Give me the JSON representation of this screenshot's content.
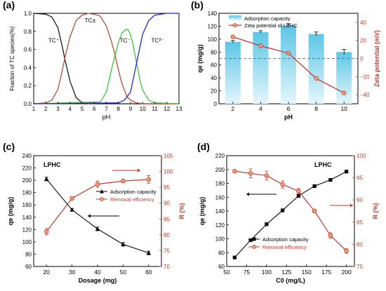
{
  "chart_data": [
    {
      "panel_label": "(a)",
      "type": "line",
      "xlabel": "pH",
      "ylabel": "Fraction of TC species(%)",
      "xlim": [
        1,
        13
      ],
      "ylim": [
        0.0,
        1.0
      ],
      "xticks": [
        1,
        2,
        3,
        4,
        5,
        6,
        7,
        8,
        9,
        10,
        11,
        12,
        13
      ],
      "yticks": [
        0.0,
        0.2,
        0.4,
        0.6,
        0.8,
        1.0
      ],
      "ytick_labels": [
        "0.0",
        "0.2",
        "0.4",
        "0.6",
        "0.8",
        "1.0"
      ],
      "grid": false,
      "series": [
        {
          "name": "TC⁺",
          "color": "#1a1a1a",
          "x": [
            1,
            2,
            2.5,
            3,
            3.3,
            3.6,
            4,
            4.5,
            5,
            6,
            7,
            13
          ],
          "values": [
            1.0,
            0.99,
            0.96,
            0.84,
            0.67,
            0.48,
            0.25,
            0.07,
            0.01,
            0.0,
            0.0,
            0.0
          ]
        },
        {
          "name": "TC±",
          "color": "#b54a3c",
          "x": [
            1,
            2,
            2.5,
            3,
            3.3,
            3.6,
            4,
            4.5,
            5,
            5.5,
            6,
            6.5,
            7,
            7.4,
            7.7,
            8,
            8.3,
            8.7,
            9,
            9.5,
            10,
            11,
            13
          ],
          "values": [
            0.0,
            0.01,
            0.04,
            0.16,
            0.33,
            0.52,
            0.74,
            0.92,
            0.98,
            1.0,
            0.99,
            0.97,
            0.86,
            0.7,
            0.55,
            0.37,
            0.22,
            0.08,
            0.04,
            0.01,
            0.0,
            0.0,
            0.0
          ]
        },
        {
          "name": "TC⁻",
          "color": "#3cc43a",
          "x": [
            1,
            6.5,
            7,
            7.5,
            8,
            8.3,
            8.6,
            8.8,
            9,
            9.2,
            9.5,
            9.8,
            10,
            10.5,
            11,
            13
          ],
          "values": [
            0.0,
            0.02,
            0.13,
            0.42,
            0.68,
            0.78,
            0.82,
            0.82,
            0.76,
            0.66,
            0.45,
            0.25,
            0.15,
            0.04,
            0.01,
            0.0
          ]
        },
        {
          "name": "TC²⁻",
          "color": "#1e2ad6",
          "x": [
            1,
            8,
            8.5,
            9,
            9.5,
            10,
            10.5,
            11,
            11.5,
            12,
            13
          ],
          "values": [
            0.0,
            0.01,
            0.04,
            0.13,
            0.45,
            0.77,
            0.92,
            0.98,
            0.99,
            1.0,
            1.0
          ]
        }
      ],
      "annotations": [
        "TC⁺",
        "TC±",
        "TC⁻",
        "TC²⁻"
      ]
    },
    {
      "panel_label": "(b)",
      "type": "bar",
      "xlabel": "pH",
      "ylabel": "qe (mg/g)",
      "y2label": "Zeta potential (mV)",
      "categories": [
        "2",
        "4",
        "6",
        "8",
        "10"
      ],
      "ylim": [
        0,
        140
      ],
      "y2lim": [
        -50,
        50
      ],
      "yticks": [
        0,
        20,
        40,
        60,
        80,
        100,
        120,
        140
      ],
      "y2ticks": [
        -40,
        -20,
        0,
        20,
        40
      ],
      "y2tick_labels": [
        "−40",
        "−20",
        "0",
        "20",
        "40"
      ],
      "legend_position": "top-right",
      "series": [
        {
          "name": "Adsorption capacity",
          "kind": "bar",
          "axis": "left",
          "color": "#7fd3ea",
          "values": [
            96,
            111,
            121,
            108,
            80
          ],
          "errors": [
            2,
            2,
            3,
            3,
            4
          ]
        },
        {
          "name": "Zeta potential of LPHC",
          "kind": "line",
          "axis": "right",
          "color": "#c0392b",
          "values": [
            24,
            14,
            6,
            -22,
            -38
          ],
          "errors": [
            2,
            3,
            1,
            1,
            1
          ]
        }
      ],
      "reference_line": {
        "axis": "right",
        "value": 0
      }
    },
    {
      "panel_label": "(c)",
      "type": "line",
      "annotation_label": "LPHC",
      "xlabel": "Dosage (mg)",
      "ylabel": "qe (mg/g)",
      "y2label": "R (%)",
      "x": [
        20,
        30,
        40,
        50,
        60
      ],
      "xlim": [
        15,
        65
      ],
      "xticks": [
        20,
        30,
        40,
        50,
        60
      ],
      "ylim": [
        60,
        240
      ],
      "yticks": [
        60,
        80,
        100,
        120,
        140,
        160,
        180,
        200,
        220,
        240
      ],
      "y2lim": [
        70,
        105
      ],
      "y2ticks": [
        70,
        75,
        80,
        85,
        90,
        95,
        100,
        105
      ],
      "legend_position": "center-right",
      "series": [
        {
          "name": "Adsorption capacity",
          "axis": "left",
          "color": "#1a1a1a",
          "marker": "triangle",
          "values": [
            202,
            152,
            121,
            96,
            82
          ],
          "errors": [
            3,
            2,
            3,
            3,
            3
          ]
        },
        {
          "name": "Removal efficiency",
          "axis": "right",
          "color": "#c0392b",
          "marker": "circle",
          "values": [
            81,
            91.5,
            96,
            97,
            97.5
          ],
          "errors": [
            1,
            0.5,
            1,
            0.5,
            1.2
          ]
        }
      ]
    },
    {
      "panel_label": "(d)",
      "type": "line",
      "annotation_label": "LPHC",
      "xlabel": "C0 (mg/L)",
      "ylabel": "qe (mg/g)",
      "y2label": "R (%)",
      "x": [
        60,
        80,
        100,
        120,
        140,
        160,
        180,
        200
      ],
      "xlim": [
        50,
        210
      ],
      "xticks": [
        50,
        75,
        100,
        125,
        150,
        175,
        200
      ],
      "ylim": [
        60,
        220
      ],
      "yticks": [
        60,
        80,
        100,
        120,
        140,
        160,
        180,
        200,
        220
      ],
      "y2lim": [
        75,
        100
      ],
      "y2ticks": [
        75,
        80,
        85,
        90,
        95,
        100
      ],
      "legend_position": "bottom-right",
      "series": [
        {
          "name": "Adsorption capacity",
          "axis": "left",
          "color": "#1a1a1a",
          "marker": "square",
          "values": [
            73,
            98,
            121,
            141,
            162,
            176,
            185,
            197
          ],
          "errors": [
            1,
            2,
            2,
            2,
            2,
            1,
            1,
            1
          ]
        },
        {
          "name": "Removal efficiency",
          "axis": "right",
          "color": "#c0392b",
          "marker": "circle",
          "values": [
            96.5,
            96,
            95.5,
            93.5,
            92,
            87.5,
            82,
            78.5
          ],
          "errors": [
            0.3,
            1,
            1,
            0.8,
            0.6,
            0.4,
            0.6,
            0.5
          ]
        }
      ]
    }
  ]
}
